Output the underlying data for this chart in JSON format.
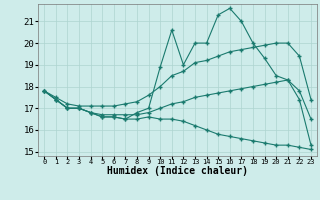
{
  "xlabel": "Humidex (Indice chaleur)",
  "background_color": "#ceecea",
  "grid_color": "#aed4d0",
  "line_color": "#1a7a6e",
  "hours": [
    0,
    1,
    2,
    3,
    4,
    5,
    6,
    7,
    8,
    9,
    10,
    11,
    12,
    13,
    14,
    15,
    16,
    17,
    18,
    19,
    20,
    21,
    22,
    23
  ],
  "max_values": [
    17.8,
    17.4,
    17.0,
    17.0,
    16.8,
    16.6,
    16.6,
    16.5,
    16.8,
    17.0,
    18.9,
    20.6,
    19.0,
    20.0,
    20.0,
    21.3,
    21.6,
    21.0,
    20.0,
    19.3,
    18.5,
    18.3,
    17.4,
    15.3
  ],
  "min_values": [
    17.8,
    17.4,
    17.0,
    17.0,
    16.8,
    16.6,
    16.6,
    16.5,
    16.5,
    16.6,
    16.5,
    16.5,
    16.4,
    16.2,
    16.0,
    15.8,
    15.7,
    15.6,
    15.5,
    15.4,
    15.3,
    15.3,
    15.2,
    15.1
  ],
  "mean_upper": [
    17.8,
    17.5,
    17.2,
    17.1,
    17.1,
    17.1,
    17.1,
    17.2,
    17.3,
    17.6,
    18.0,
    18.5,
    18.7,
    19.1,
    19.2,
    19.4,
    19.6,
    19.7,
    19.8,
    19.9,
    20.0,
    20.0,
    19.4,
    17.4
  ],
  "mean_lower": [
    17.8,
    17.4,
    17.0,
    17.0,
    16.8,
    16.7,
    16.7,
    16.7,
    16.7,
    16.8,
    17.0,
    17.2,
    17.3,
    17.5,
    17.6,
    17.7,
    17.8,
    17.9,
    18.0,
    18.1,
    18.2,
    18.3,
    17.8,
    16.5
  ],
  "ylim_min": 14.8,
  "ylim_max": 21.8,
  "yticks": [
    15,
    16,
    17,
    18,
    19,
    20,
    21
  ],
  "xtick_fontsize": 5.0,
  "ytick_fontsize": 6.5,
  "xlabel_fontsize": 7.0
}
